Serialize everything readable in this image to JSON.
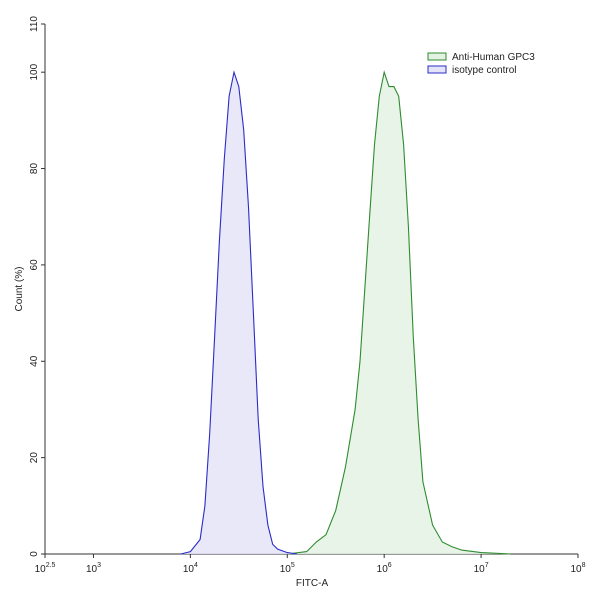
{
  "chart_data": {
    "type": "area",
    "xlabel": "FITC-A",
    "ylabel": "Count (%)",
    "xscale": "log",
    "xlim": [
      316.23,
      100000000
    ],
    "xticks": [
      {
        "value": 316.23,
        "label": "102.5"
      },
      {
        "value": 1000,
        "label": "103"
      },
      {
        "value": 10000,
        "label": "104"
      },
      {
        "value": 100000,
        "label": "105"
      },
      {
        "value": 1000000,
        "label": "106"
      },
      {
        "value": 10000000,
        "label": "107"
      },
      {
        "value": 100000000,
        "label": "108"
      }
    ],
    "ylim": [
      0,
      110
    ],
    "yticks": [
      0,
      20,
      40,
      60,
      80,
      100,
      110
    ],
    "legend": "upper right",
    "series": [
      {
        "name": "Anti-Human GPC3",
        "color": "#2e8b2e",
        "fill": "#e3f2e3",
        "x": [
          100000,
          158489,
          199526,
          251189,
          316228,
          398107,
          501187,
          562341,
          630957,
          707946,
          794328,
          891251,
          1000000,
          1122018,
          1258925,
          1412538,
          1584893,
          1778279,
          1995262,
          2238721,
          2511886,
          3162278,
          3981072,
          5011872,
          6309573,
          10000000,
          19952623
        ],
        "values": [
          0,
          0.5,
          2.5,
          4,
          9,
          18,
          30,
          40,
          55,
          70,
          85,
          95,
          100,
          97,
          97,
          95,
          85,
          68,
          45,
          28,
          15,
          6,
          2.5,
          1.5,
          0.8,
          0.3,
          0
        ]
      },
      {
        "name": "isotype control",
        "color": "#2b2bc8",
        "fill": "#e4e4f8",
        "x": [
          7943,
          10000,
          12589,
          14125,
          15849,
          17783,
          19953,
          22387,
          25119,
          28184,
          31623,
          35481,
          39811,
          44668,
          50119,
          56234,
          63096,
          70795,
          79433,
          100000,
          125893
        ],
        "values": [
          0,
          0.5,
          3,
          10,
          25,
          45,
          65,
          82,
          95,
          100,
          97,
          88,
          72,
          50,
          28,
          14,
          6,
          2,
          1,
          0.3,
          0
        ]
      }
    ]
  }
}
